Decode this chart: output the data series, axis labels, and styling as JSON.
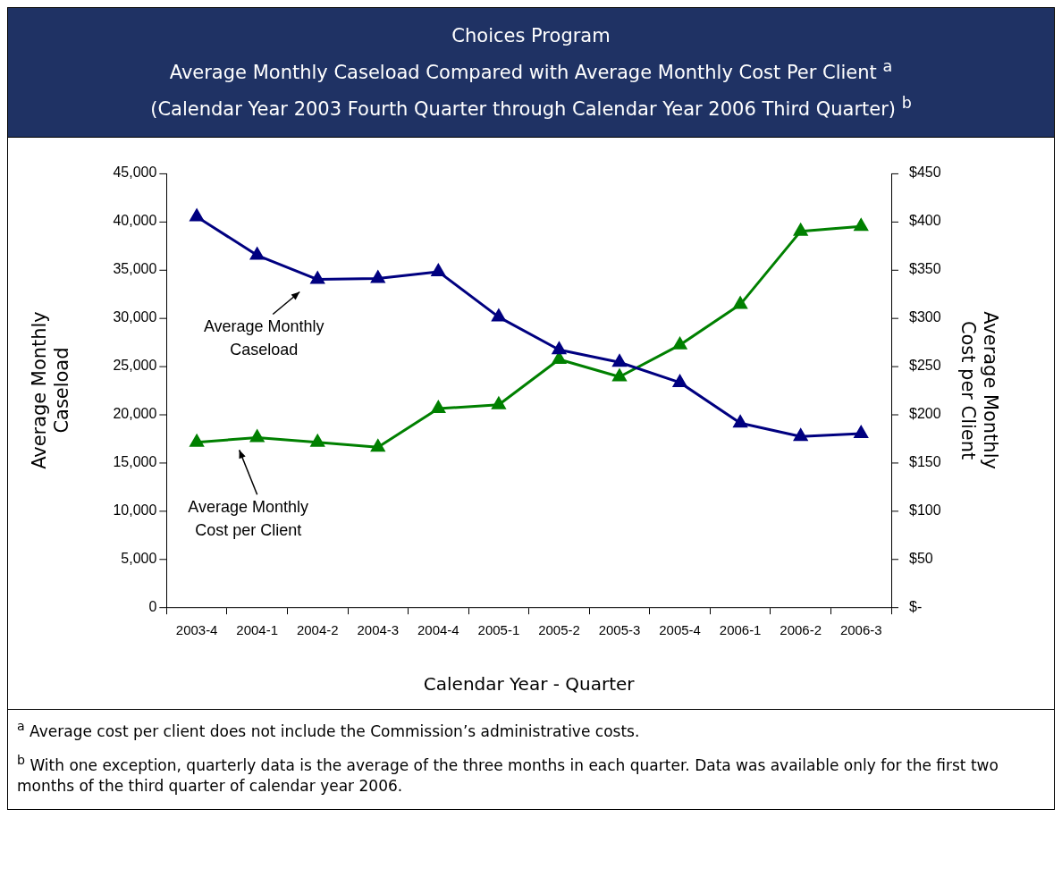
{
  "chart_data": {
    "type": "line",
    "title": "Choices Program",
    "subtitle": "Average Monthly Caseload Compared with Average Monthly Cost Per Client $^{a}$\n(Calendar Year 2003 Fourth Quarter through Calendar Year 2006 Third Quarter) $^{b}$",
    "xlabel": "Calendar Year - Quarter",
    "ylabel": "Average Monthly Caseload",
    "y2label": "Average Monthly Cost per Client",
    "categories": [
      "2003-4",
      "2004-1",
      "2004-2",
      "2004-3",
      "2004-4",
      "2005-1",
      "2005-2",
      "2005-3",
      "2005-4",
      "2006-1",
      "2006-2",
      "2006-3"
    ],
    "series": [
      {
        "name": "Average Monthly Caseload",
        "color": "#000080",
        "values": [
          40500,
          36500,
          34000,
          34100,
          34800,
          30100,
          26700,
          25400,
          23300,
          19100,
          17700,
          18000
        ]
      },
      {
        "name": "Average Monthly Cost per Client",
        "color": "#008000",
        "axis": "y2",
        "values": [
          171,
          176,
          171,
          166,
          206,
          210,
          257,
          239,
          272,
          314,
          390,
          395
        ]
      }
    ],
    "ylim": [
      0,
      45000
    ],
    "yticks": [
      {
        "value": 0,
        "label": "0"
      },
      {
        "value": 5000,
        "label": "5,000"
      },
      {
        "value": 10000,
        "label": "10,000"
      },
      {
        "value": 15000,
        "label": "15,000"
      },
      {
        "value": 20000,
        "label": "20,000"
      },
      {
        "value": 25000,
        "label": "25,000"
      },
      {
        "value": 30000,
        "label": "30,000"
      },
      {
        "value": 35000,
        "label": "35,000"
      },
      {
        "value": 40000,
        "label": "40,000"
      },
      {
        "value": 45000,
        "label": "45,000"
      }
    ],
    "y2lim": [
      0,
      450
    ],
    "y2ticks": [
      {
        "value": 0,
        "label": "$-"
      },
      {
        "value": 50,
        "label": "$50"
      },
      {
        "value": 100,
        "label": "$100"
      },
      {
        "value": 150,
        "label": "$150"
      },
      {
        "value": 200,
        "label": "$200"
      },
      {
        "value": 250,
        "label": "$250"
      },
      {
        "value": 300,
        "label": "$300"
      },
      {
        "value": 350,
        "label": "$350"
      },
      {
        "value": 400,
        "label": "$400"
      },
      {
        "value": 450,
        "label": "$450"
      }
    ],
    "annotations": [
      "$^{a}$ Average cost per client does not include the Commission’s administrative costs.",
      "$^{b}$ With one exception, quarterly data is the average of the three months in each quarter.  Data was available only for the first two months of the third quarter of calendar year 2006."
    ],
    "marker": "triangle",
    "line_style": "solid",
    "grid": false,
    "legend": false
  }
}
